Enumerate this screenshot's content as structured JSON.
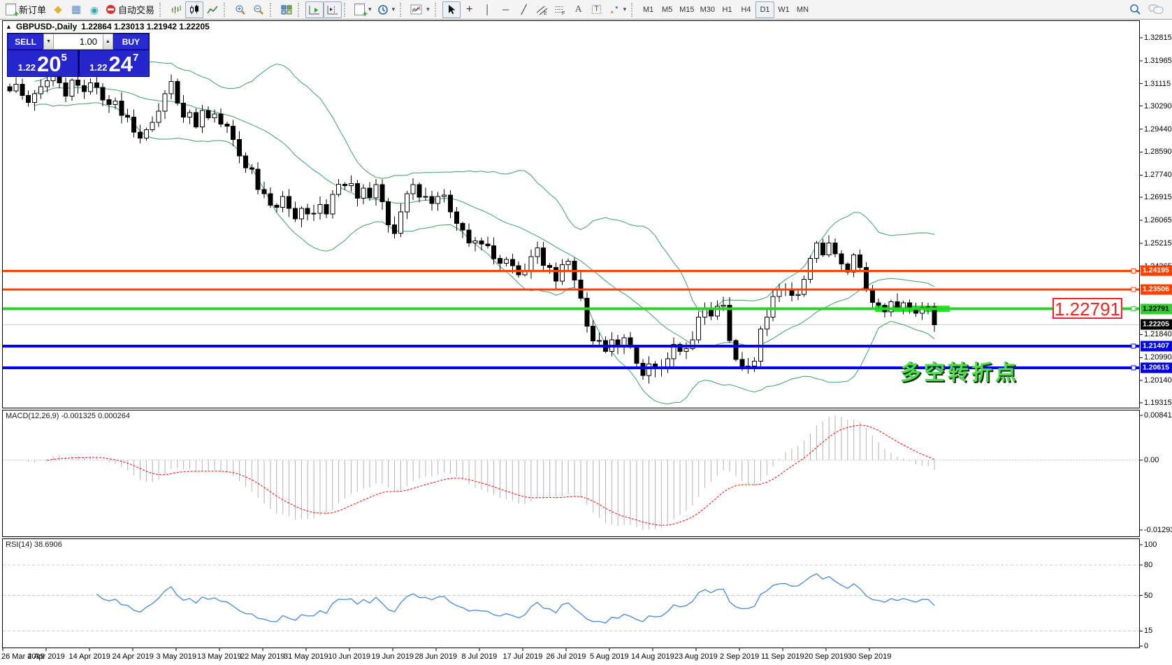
{
  "toolbar": {
    "new_order_label": "新订单",
    "autotrading_label": "自动交易",
    "timeframes": [
      "M1",
      "M5",
      "M15",
      "M30",
      "H1",
      "H4",
      "D1",
      "W1",
      "MN"
    ],
    "active_timeframe": "D1"
  },
  "icons": {
    "collapse": "▲",
    "spin_up": "▲",
    "spin_down": "▼",
    "caret": "▾",
    "metaeditor": "◆",
    "terminal": "▦",
    "alerts": "◉",
    "crosshair": "+",
    "vertical_line": "│",
    "horizontal_line": "─",
    "trendline": "╱",
    "text_tool": "A",
    "label_tool": "T"
  },
  "title": {
    "symbol_period": "GBPUSD-,Daily",
    "ohlc": "1.22864 1.23013 1.21942 1.22205"
  },
  "trade_panel": {
    "sell_label": "SELL",
    "buy_label": "BUY",
    "volume": "1.00",
    "sell_price": {
      "prefix": "1.22",
      "big": "20",
      "sup": "5"
    },
    "buy_price": {
      "prefix": "1.22",
      "big": "24",
      "sup": "7"
    }
  },
  "price_axis_ticks": [
    "1.32815",
    "1.31965",
    "1.31115",
    "1.30290",
    "1.29440",
    "1.28590",
    "1.27740",
    "1.26915",
    "1.26065",
    "1.25215",
    "1.24365",
    "1.21840",
    "1.20990",
    "1.20140",
    "1.19315"
  ],
  "axis_badges": [
    {
      "text": "1.24195",
      "bg": "#ff4000",
      "fg": "#ffffff",
      "price": 1.24195
    },
    {
      "text": "1.23506",
      "bg": "#ff4000",
      "fg": "#ffffff",
      "price": 1.23506
    },
    {
      "text": "1.22791",
      "bg": "#33cc33",
      "fg": "#000000",
      "price": 1.22791
    },
    {
      "text": "1.22205",
      "bg": "#000000",
      "fg": "#ffffff",
      "price": 1.22205
    },
    {
      "text": "1.21407",
      "bg": "#0000e0",
      "fg": "#ffffff",
      "price": 1.21407
    },
    {
      "text": "1.20615",
      "bg": "#0000e0",
      "fg": "#ffffff",
      "price": 1.20615
    }
  ],
  "horizontal_lines": [
    {
      "price": 1.24195,
      "color": "#ff4000",
      "width": 3
    },
    {
      "price": 1.23506,
      "color": "#ff4000",
      "width": 3
    },
    {
      "price": 1.22791,
      "color": "#33cc33",
      "width": 4
    },
    {
      "price": 1.21407,
      "color": "#0000ff",
      "width": 4
    },
    {
      "price": 1.20615,
      "color": "#0000ff",
      "width": 4
    }
  ],
  "current_price": {
    "price": 1.22205,
    "line_color": "#c8c8c8"
  },
  "highlight_segment": {
    "price": 1.22791,
    "color": "#00ff00",
    "from_bar": 140,
    "bars": 12
  },
  "annotations": {
    "price_box": "1.22791",
    "turning_point": "多空转折点"
  },
  "macd": {
    "label": "MACD(12,26,9)",
    "values": "-0.001325 0.000264",
    "axis": [
      {
        "text": "0.008411",
        "pos": "max"
      },
      {
        "text": "0.00",
        "pos": "zero"
      },
      {
        "text": "-0.012931",
        "pos": "min"
      }
    ]
  },
  "rsi": {
    "label": "RSI(14)",
    "value": "38.6906",
    "axis": [
      "100",
      "80",
      "50",
      "15",
      "0"
    ],
    "axis_values": [
      100,
      80,
      50,
      15,
      0
    ],
    "levels": [
      80,
      50,
      15
    ]
  },
  "date_axis": [
    "26 Mar 2019",
    "4 Apr 2019",
    "14 Apr 2019",
    "24 Apr 2019",
    "3 May 2019",
    "13 May 2019",
    "22 May 2019",
    "31 May 2019",
    "10 Jun 2019",
    "19 Jun 2019",
    "28 Jun 2019",
    "8 Jul 2019",
    "17 Jul 2019",
    "26 Jul 2019",
    "5 Aug 2019",
    "14 Aug 2019",
    "23 Aug 2019",
    "2 Sep 2019",
    "11 Sep 2019",
    "20 Sep 2019",
    "30 Sep 2019"
  ],
  "chart_data": {
    "type": "candlestick",
    "symbol": "GBPUSD-",
    "timeframe": "Daily",
    "ylim": [
      1.19315,
      1.32815
    ],
    "indicators": {
      "bollinger": {
        "period": 20,
        "deviation": 2,
        "color": "#3ca06e"
      },
      "macd": {
        "fast": 12,
        "slow": 26,
        "signal": 9,
        "histogram_color": "#b4b4b4",
        "signal_color": "#ff0000"
      },
      "rsi": {
        "period": 14,
        "color": "#4688db"
      }
    },
    "last_bar": {
      "open": 1.22864,
      "high": 1.23013,
      "low": 1.21942,
      "close": 1.22205
    },
    "closes": [
      1.3085,
      1.311,
      1.3068,
      1.3042,
      1.3075,
      1.31,
      1.3122,
      1.3158,
      1.3115,
      1.3065,
      1.3125,
      1.3105,
      1.3082,
      1.3115,
      1.3098,
      1.3052,
      1.3035,
      1.3048,
      1.2995,
      1.2988,
      1.2932,
      1.291,
      1.2942,
      1.2968,
      1.301,
      1.3075,
      1.312,
      1.304,
      1.2988,
      1.3005,
      1.2952,
      1.3012,
      1.2985,
      1.3,
      1.2962,
      1.2955,
      1.2905,
      1.2845,
      1.28,
      1.2795,
      1.272,
      1.2705,
      1.2662,
      1.2655,
      1.2695,
      1.265,
      1.2612,
      1.265,
      1.263,
      1.2632,
      1.2665,
      1.263,
      1.2702,
      1.274,
      1.2735,
      1.2742,
      1.2688,
      1.2725,
      1.269,
      1.2738,
      1.2675,
      1.259,
      1.2558,
      1.2638,
      1.2705,
      1.2738,
      1.2692,
      1.2695,
      1.2668,
      1.2695,
      1.27,
      1.2638,
      1.2595,
      1.257,
      1.2522,
      1.253,
      1.2518,
      1.2512,
      1.2465,
      1.2448,
      1.2462,
      1.2438,
      1.2405,
      1.2422,
      1.2472,
      1.2505,
      1.244,
      1.2432,
      1.2382,
      1.2442,
      1.2455,
      1.2385,
      1.2318,
      1.2215,
      1.216,
      1.2162,
      1.2122,
      1.2165,
      1.2142,
      1.2172,
      1.2138,
      1.2078,
      1.2032,
      1.2075,
      1.2058,
      1.2062,
      1.2095,
      1.2148,
      1.2122,
      1.2132,
      1.2165,
      1.2248,
      1.2282,
      1.2252,
      1.2288,
      1.2292,
      1.2162,
      1.2092,
      1.2065,
      1.2068,
      1.2085,
      1.2205,
      1.2248,
      1.2325,
      1.2348,
      1.2352,
      1.2328,
      1.2332,
      1.2388,
      1.2465,
      1.2522,
      1.2478,
      1.2522,
      1.2482,
      1.2445,
      1.2415,
      1.2478,
      1.2432,
      1.2352,
      1.2302,
      1.2292,
      1.2268,
      1.2305,
      1.2282,
      1.2302,
      1.2282,
      1.2262,
      1.2285,
      1.2286,
      1.22205
    ]
  }
}
